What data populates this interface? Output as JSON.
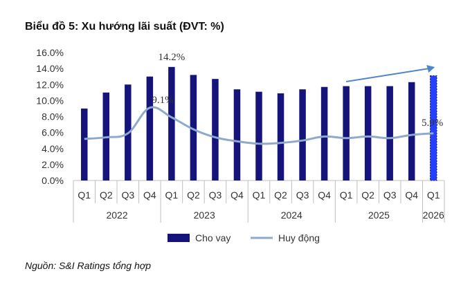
{
  "title": "Biểu đồ 5: Xu hướng lãi suất (ĐVT: %)",
  "source": "Nguồn: S&I Ratings tổng hợp",
  "colors": {
    "bar": "#14147a",
    "bar_highlight": "#2540ff",
    "line": "#8fa9cc",
    "arrow": "#4e86c8",
    "axis": "#bfbfbf",
    "text": "#333333"
  },
  "chart_data": {
    "type": "bar",
    "title": "Biểu đồ 5: Xu hướng lãi suất (ĐVT: %)",
    "categories": [
      "Q1",
      "Q2",
      "Q3",
      "Q4",
      "Q1",
      "Q2",
      "Q3",
      "Q4",
      "Q1",
      "Q2",
      "Q3",
      "Q4",
      "Q1",
      "Q2",
      "Q3",
      "Q4",
      "Q1"
    ],
    "groups": [
      {
        "label": "2022",
        "count": 4
      },
      {
        "label": "2023",
        "count": 4
      },
      {
        "label": "2024",
        "count": 4
      },
      {
        "label": "2025",
        "count": 4
      },
      {
        "label": "2026",
        "count": 1
      }
    ],
    "ylim": [
      0,
      16
    ],
    "yticks": [
      "0.0%",
      "2.0%",
      "4.0%",
      "6.0%",
      "8.0%",
      "10.0%",
      "12.0%",
      "14.0%",
      "16.0%"
    ],
    "series": [
      {
        "name": "Cho vay",
        "type": "bar",
        "values": [
          9.0,
          11.0,
          12.0,
          13.0,
          14.2,
          13.2,
          12.7,
          11.4,
          11.1,
          10.9,
          11.4,
          11.7,
          11.8,
          11.8,
          11.8,
          12.3,
          13.1
        ]
      },
      {
        "name": "Huy động",
        "type": "line",
        "values": [
          5.2,
          5.4,
          5.9,
          9.1,
          7.9,
          6.4,
          5.4,
          4.9,
          4.6,
          4.7,
          5.0,
          5.5,
          5.3,
          5.5,
          5.3,
          5.7,
          5.9
        ]
      }
    ],
    "annotations": [
      {
        "text": "14.2%",
        "series": "Cho vay",
        "index": 4
      },
      {
        "text": "9.1%",
        "series": "Huy động",
        "index": 3
      },
      {
        "text": "5.9%",
        "series": "Huy động",
        "index": 16
      }
    ],
    "trend_arrow": {
      "from_index": 12,
      "to_index": 16,
      "direction": "up"
    },
    "legend": {
      "position": "bottom",
      "items": [
        "Cho vay",
        "Huy động"
      ]
    },
    "grid": false
  }
}
